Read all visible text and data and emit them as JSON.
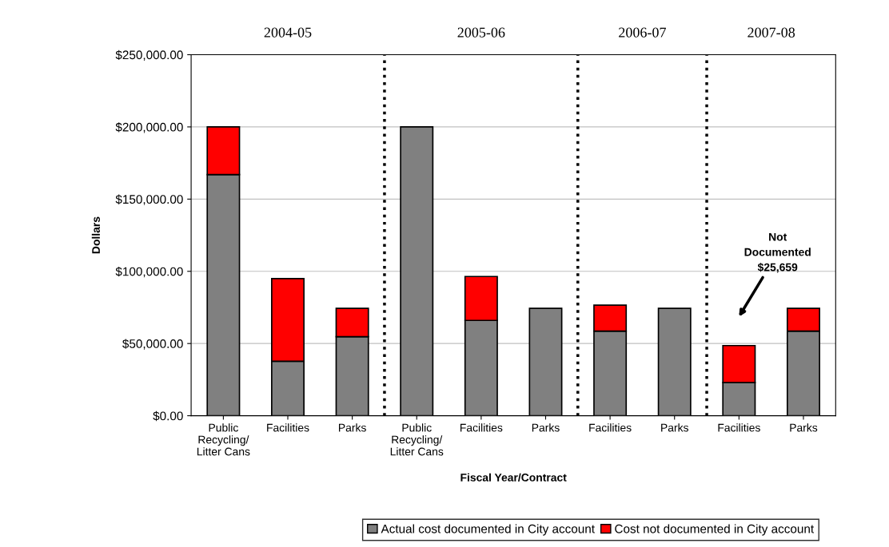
{
  "chart_data": {
    "type": "bar",
    "stacked": true,
    "categories": [
      "Public\nRecycling/\nLitter Cans",
      "Facilities",
      "Parks",
      "Public\nRecycling/\nLitter Cans",
      "Facilities",
      "Parks",
      "Facilities",
      "Parks",
      "Facilities",
      "Parks"
    ],
    "series": [
      {
        "name": "Actual cost documented in City account",
        "color": "#808080",
        "values": [
          167000,
          37700,
          54700,
          200000,
          66000,
          74400,
          58600,
          74400,
          22900,
          58600
        ]
      },
      {
        "name": "Cost not documented in City account",
        "color": "#ff0000",
        "values": [
          33000,
          57300,
          19700,
          null,
          30400,
          null,
          18000,
          null,
          25700,
          15800
        ]
      }
    ],
    "xlabel": "Fiscal Year/Contract",
    "ylabel": "Dollars",
    "ylim": [
      0,
      250000
    ],
    "yticks": [
      {
        "value": 0,
        "label": "$0.00"
      },
      {
        "value": 50000,
        "label": "$50,000.00"
      },
      {
        "value": 100000,
        "label": "$100,000.00"
      },
      {
        "value": 150000,
        "label": "$150,000.00"
      },
      {
        "value": 200000,
        "label": "$200,000.00"
      },
      {
        "value": 250000,
        "label": "$250,000.00"
      }
    ],
    "annotations": [
      "2004-05",
      "2005-06",
      "2006-07",
      "2007-08",
      "Not\nDocumented\n$25,659"
    ],
    "grid": "y",
    "legend": "bottom"
  }
}
